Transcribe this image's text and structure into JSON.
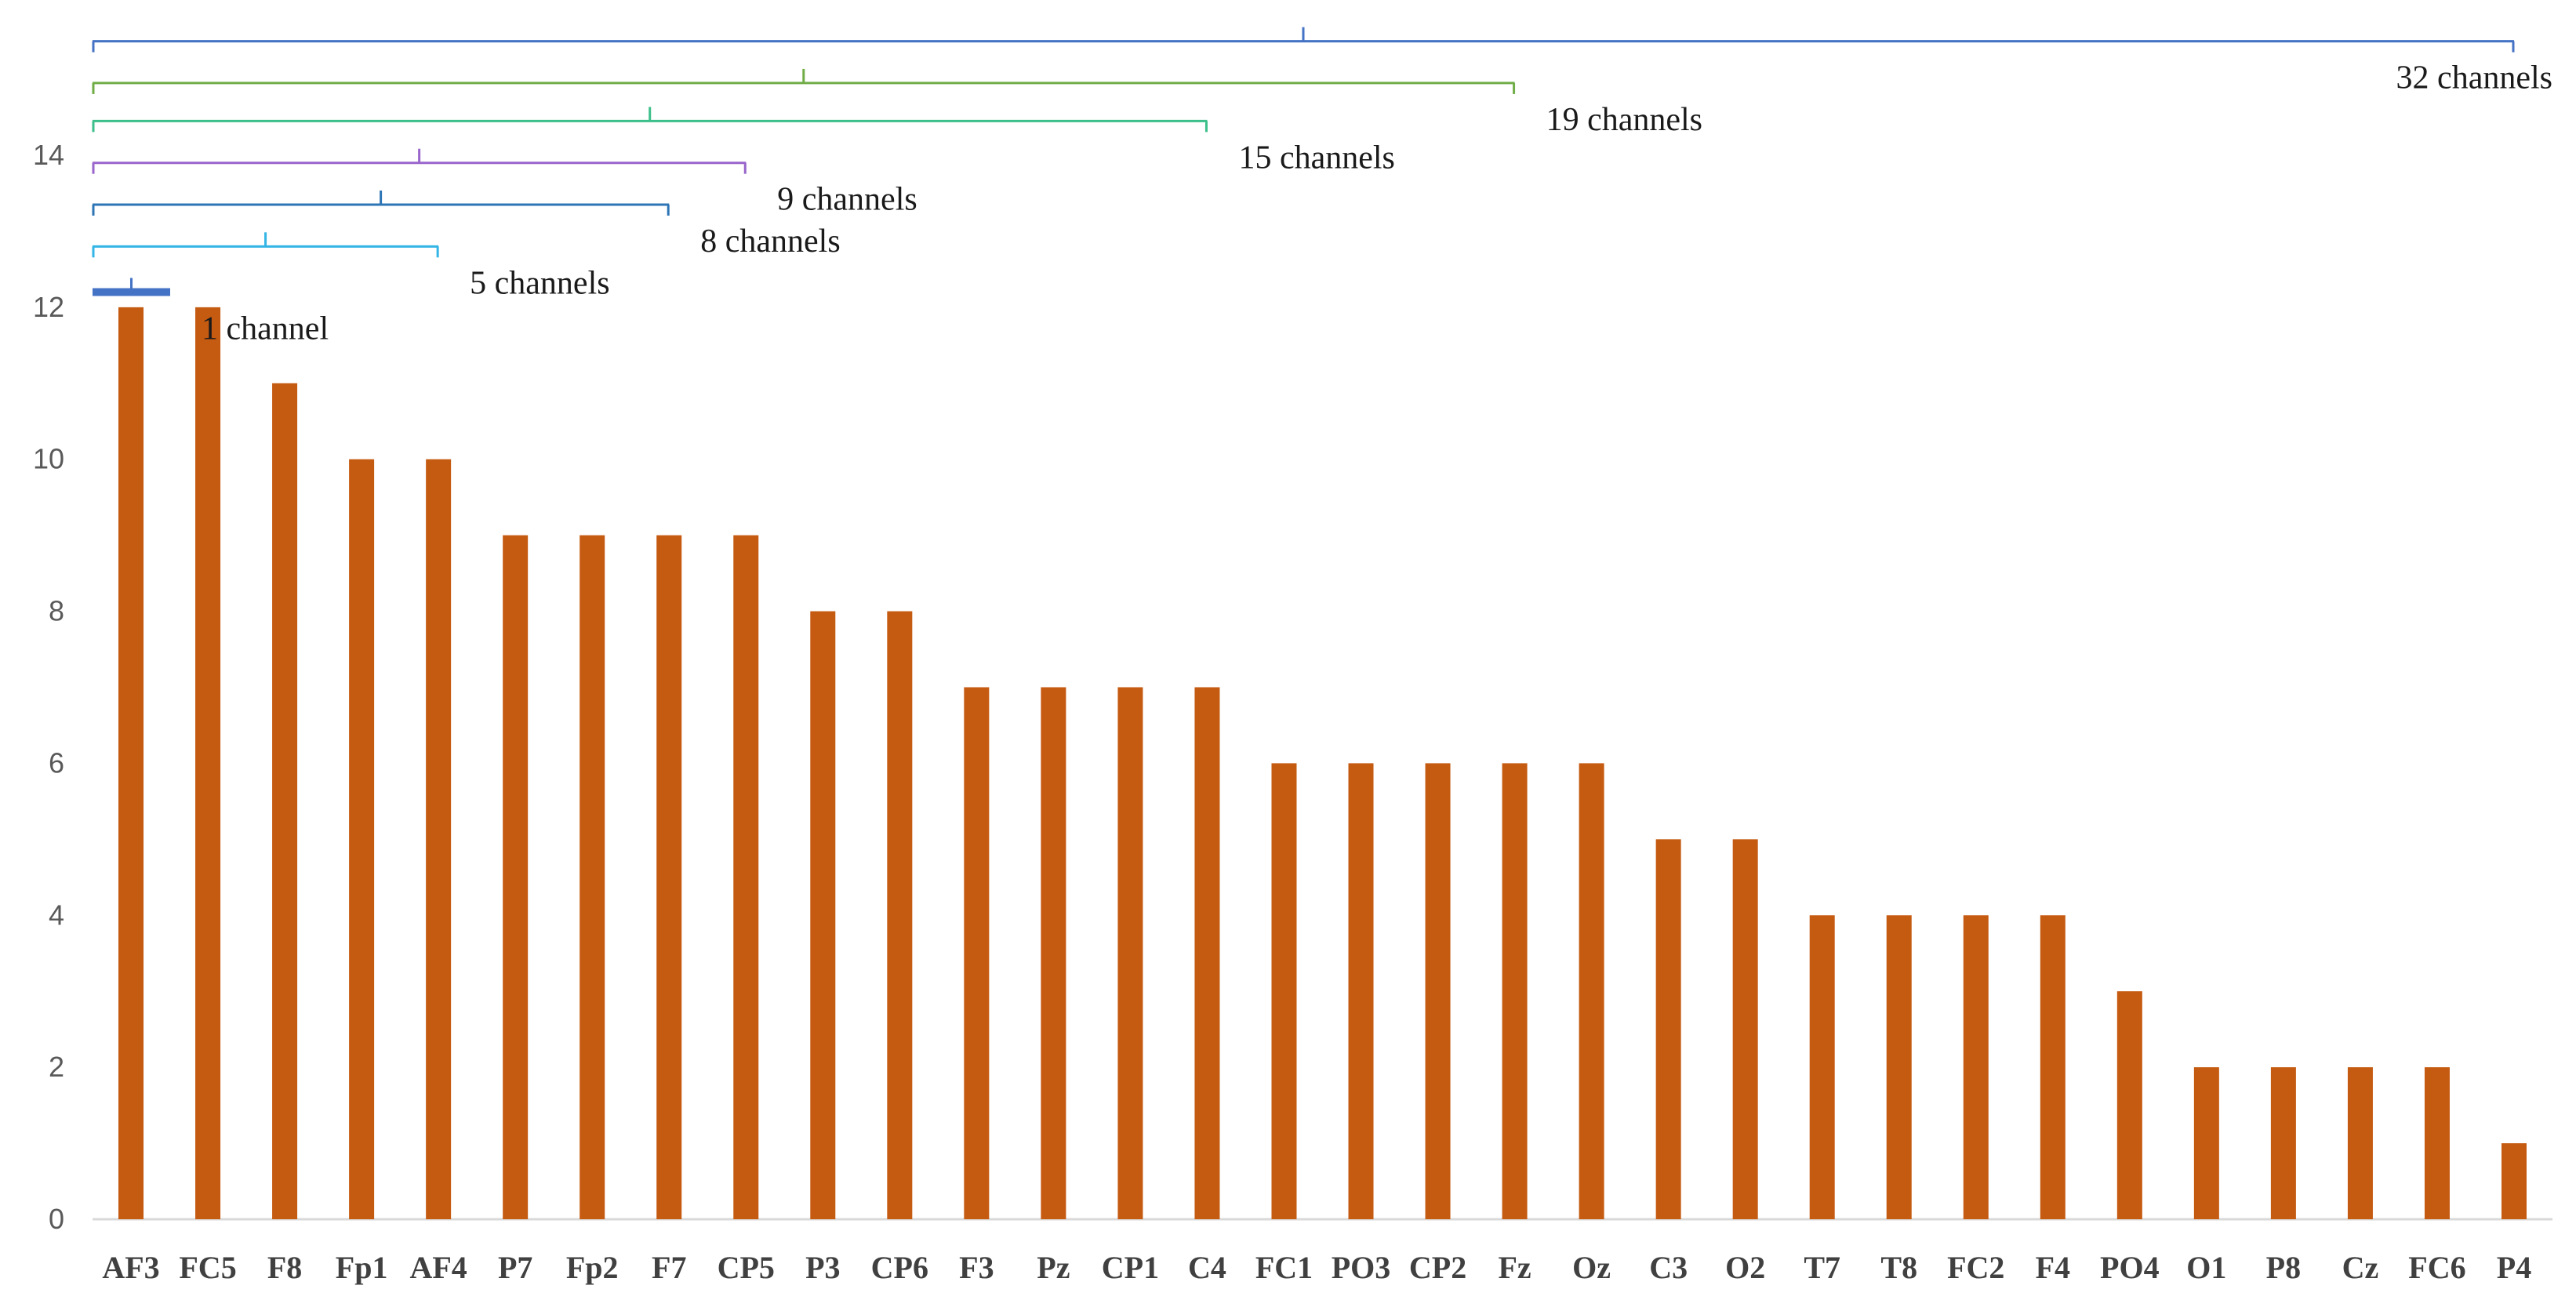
{
  "chart_data": {
    "type": "bar",
    "title": "",
    "xlabel": "",
    "ylabel": "",
    "ylim": [
      0,
      15
    ],
    "yticks": [
      0,
      2,
      4,
      6,
      8,
      10,
      12,
      14
    ],
    "bar_color": "#c55a11",
    "categories": [
      "AF3",
      "FC5",
      "F8",
      "Fp1",
      "AF4",
      "P7",
      "Fp2",
      "F7",
      "CP5",
      "P3",
      "CP6",
      "F3",
      "Pz",
      "CP1",
      "C4",
      "FC1",
      "PO3",
      "CP2",
      "Fz",
      "Oz",
      "C3",
      "O2",
      "T7",
      "T8",
      "FC2",
      "F4",
      "PO4",
      "O1",
      "P8",
      "Cz",
      "FC6",
      "P4"
    ],
    "values": [
      12,
      12,
      11,
      10,
      10,
      9,
      9,
      9,
      9,
      8,
      8,
      7,
      7,
      7,
      7,
      6,
      6,
      6,
      6,
      6,
      5,
      5,
      4,
      4,
      4,
      4,
      3,
      2,
      2,
      2,
      2,
      1
    ],
    "brackets": [
      {
        "label": "1 channel",
        "channels": 1,
        "level": 12.2,
        "color": "#4472c4"
      },
      {
        "label": "5 channels",
        "channels": 5,
        "level": 12.8,
        "color": "#33b5e5"
      },
      {
        "label": "8 channels",
        "channels": 8,
        "level": 13.35,
        "color": "#2e75b6"
      },
      {
        "label": "9 channels",
        "channels": 9,
        "level": 13.9,
        "color": "#9966cc"
      },
      {
        "label": "15 channels",
        "channels": 15,
        "level": 14.45,
        "color": "#3cbf8a"
      },
      {
        "label": "19 channels",
        "channels": 19,
        "level": 14.95,
        "color": "#70ad47"
      },
      {
        "label": "32 channels",
        "channels": 32,
        "level": 15.5,
        "color": "#4472c4"
      }
    ]
  }
}
